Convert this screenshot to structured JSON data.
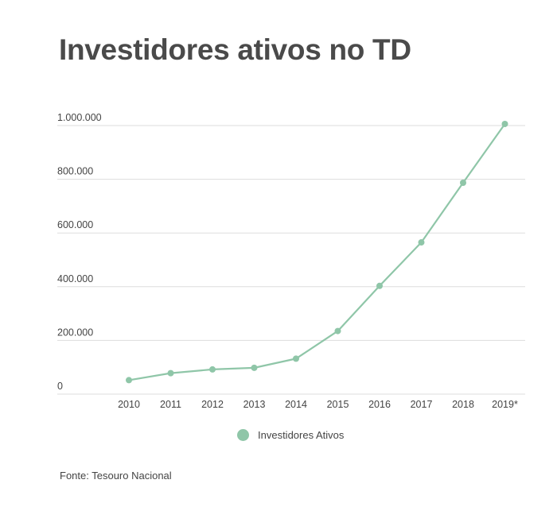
{
  "title": "Investidores ativos no TD",
  "source": "Fonte: Tesouro Nacional",
  "chart_data": {
    "type": "line",
    "categories": [
      "2010",
      "2011",
      "2012",
      "2013",
      "2014",
      "2015",
      "2016",
      "2017",
      "2018",
      "2019*"
    ],
    "series": [
      {
        "name": "Investidores Ativos",
        "values": [
          52000,
          78000,
          92000,
          98000,
          132000,
          235000,
          403000,
          565000,
          787000,
          1006000
        ],
        "color": "#8fc6a8"
      }
    ],
    "ylim": [
      0,
      1000000
    ],
    "yticks": [
      0,
      200000,
      400000,
      600000,
      800000,
      1000000
    ],
    "ytick_labels": [
      "0",
      "200.000",
      "400.000",
      "600.000",
      "800.000",
      "1.000.000"
    ],
    "grid": true,
    "legend_position": "bottom-center",
    "gridline_color": "#dddddd"
  }
}
